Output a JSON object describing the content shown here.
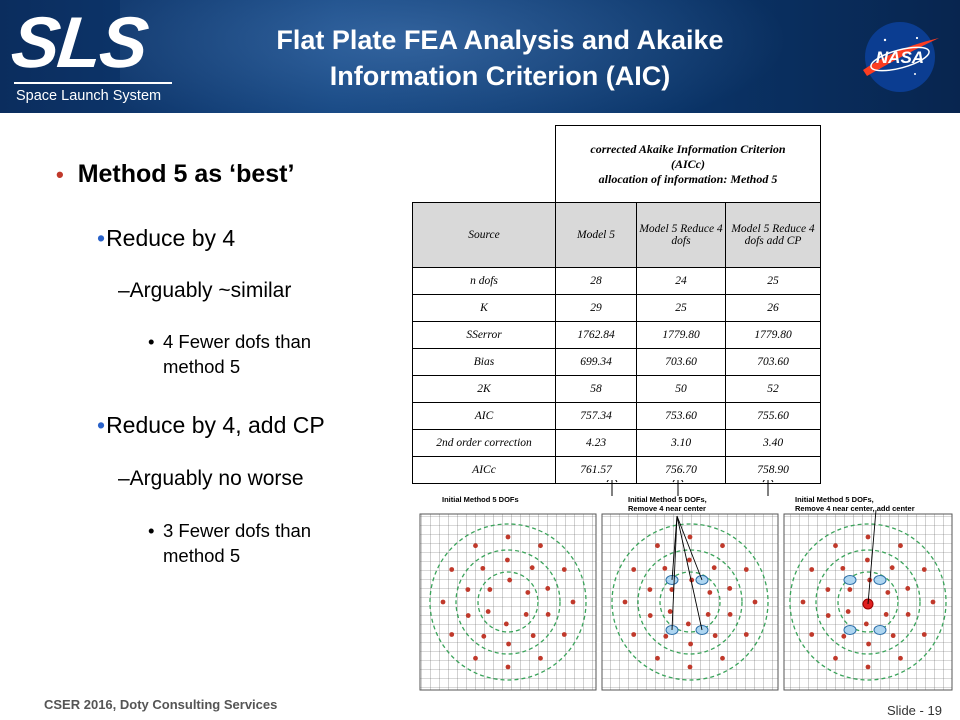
{
  "header": {
    "logo_text": "SLS",
    "logo_subtitle": "Space Launch System",
    "title_line1": "Flat Plate FEA Analysis and Akaike",
    "title_line2": "Information Criterion (AIC)",
    "nasa_logo_text": "NASA"
  },
  "bullets": {
    "main": "Method 5 as ‘best’",
    "reduce4": "Reduce by 4",
    "reduce4_sub": "–Arguably ~similar",
    "reduce4_detail_1": "4 Fewer dofs than",
    "reduce4_detail_2": "method 5",
    "reduce4cp": "Reduce by 4, add CP",
    "reduce4cp_sub": "–Arguably no worse",
    "reduce4cp_detail_1": "3 Fewer dofs than",
    "reduce4cp_detail_2": "method 5"
  },
  "table": {
    "caption_line1": "corrected Akaike Information Criterion",
    "caption_line2": "(AICc)",
    "caption_line3": "allocation of information: Method 5",
    "headers": [
      "Source",
      "Model 5",
      "Model 5 Reduce 4 dofs",
      "Model 5 Reduce 4 dofs add CP"
    ],
    "rows": [
      [
        "n dofs",
        "28",
        "24",
        "25"
      ],
      [
        "K",
        "29",
        "25",
        "26"
      ],
      [
        "SSerror",
        "1762.84",
        "1779.80",
        "1779.80"
      ],
      [
        "Bias",
        "699.34",
        "703.60",
        "703.60"
      ],
      [
        "2K",
        "58",
        "50",
        "52"
      ],
      [
        "AIC",
        "757.34",
        "753.60",
        "755.60"
      ],
      [
        "2nd order correction",
        "4.23",
        "3.10",
        "3.40"
      ],
      [
        "AICc",
        "761.57",
        "756.70",
        "758.90"
      ]
    ]
  },
  "grids": {
    "label1": "Initial Method 5 DOFs",
    "label2_line1": "Initial Method 5 DOFs,",
    "label2_line2": "Remove 4 near center",
    "label3_line1": "Initial Method 5 DOFs,",
    "label3_line2": "Remove 4 near center, add center"
  },
  "footer": {
    "text": "CSER 2016, Doty Consulting Services",
    "slide": "Slide - 19"
  }
}
